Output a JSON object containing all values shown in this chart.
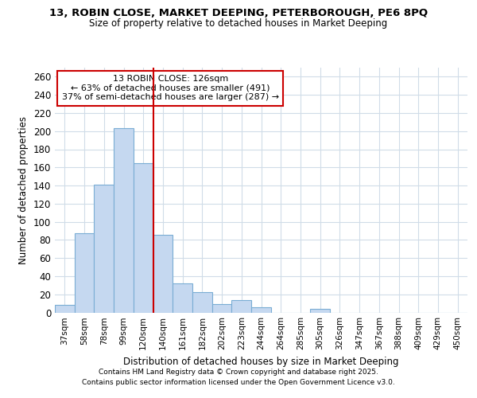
{
  "title1": "13, ROBIN CLOSE, MARKET DEEPING, PETERBOROUGH, PE6 8PQ",
  "title2": "Size of property relative to detached houses in Market Deeping",
  "xlabel": "Distribution of detached houses by size in Market Deeping",
  "ylabel": "Number of detached properties",
  "bar_labels": [
    "37sqm",
    "58sqm",
    "78sqm",
    "99sqm",
    "120sqm",
    "140sqm",
    "161sqm",
    "182sqm",
    "202sqm",
    "223sqm",
    "244sqm",
    "264sqm",
    "285sqm",
    "305sqm",
    "326sqm",
    "347sqm",
    "367sqm",
    "388sqm",
    "409sqm",
    "429sqm",
    "450sqm"
  ],
  "bar_values": [
    8,
    87,
    141,
    203,
    165,
    86,
    32,
    22,
    9,
    14,
    6,
    0,
    0,
    4,
    0,
    0,
    0,
    0,
    0,
    0,
    0
  ],
  "bar_color": "#c5d8f0",
  "bar_edge_color": "#7aadd4",
  "vline_x": 4.5,
  "vline_color": "#cc0000",
  "annotation_line1": "13 ROBIN CLOSE: 126sqm",
  "annotation_line2": "← 63% of detached houses are smaller (491)",
  "annotation_line3": "37% of semi-detached houses are larger (287) →",
  "ylim": [
    0,
    270
  ],
  "yticks": [
    0,
    20,
    40,
    60,
    80,
    100,
    120,
    140,
    160,
    180,
    200,
    220,
    240,
    260
  ],
  "footer1": "Contains HM Land Registry data © Crown copyright and database right 2025.",
  "footer2": "Contains public sector information licensed under the Open Government Licence v3.0.",
  "bg_color": "#ffffff",
  "grid_color": "#d0dce8"
}
